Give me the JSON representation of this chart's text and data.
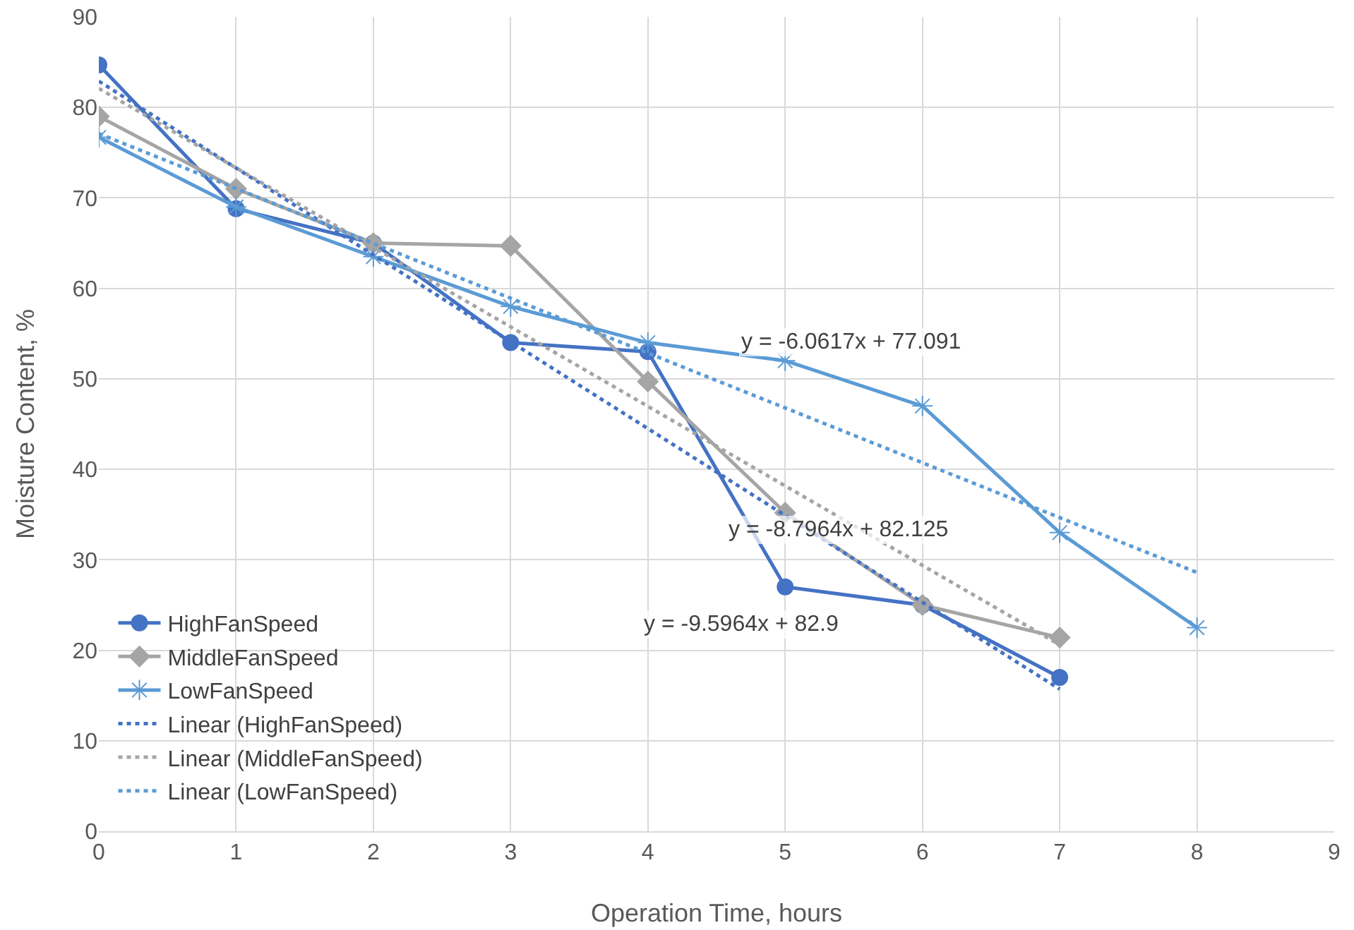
{
  "chart_data": {
    "type": "line",
    "xlabel": "Operation Time, hours",
    "ylabel": "Moisture Content, %",
    "xlim": [
      0,
      9
    ],
    "xticks": [
      0,
      1,
      2,
      3,
      4,
      5,
      6,
      7,
      8,
      9
    ],
    "ylim": [
      0,
      90
    ],
    "yticks": [
      0,
      10,
      20,
      30,
      40,
      50,
      60,
      70,
      80,
      90
    ],
    "grid": true,
    "legend": "bottom left",
    "line_style": "solid",
    "series": [
      {
        "name": "HighFanSpeed",
        "color": "#4472c4",
        "marker": "circle",
        "x": [
          0,
          1,
          2,
          3,
          4,
          5,
          6,
          7
        ],
        "values": [
          84.7,
          68.8,
          65,
          54,
          53,
          27,
          25,
          17
        ]
      },
      {
        "name": "MiddleFanSpeed",
        "color": "#a5a5a5",
        "marker": "diamond",
        "x": [
          0,
          1,
          2,
          3,
          4,
          5,
          6,
          7
        ],
        "values": [
          79,
          71,
          65,
          64.7,
          49.7,
          35.2,
          25,
          21.4
        ]
      },
      {
        "name": "LowFanSpeed",
        "color": "#5b9bd5",
        "marker": "cross",
        "x": [
          0,
          1,
          2,
          3,
          4,
          5,
          6,
          7,
          8
        ],
        "values": [
          76.7,
          69,
          63.5,
          58,
          54,
          52,
          47,
          33,
          22.5
        ]
      },
      {
        "name": "Linear (HighFanSpeed)",
        "color": "#4472c4",
        "marker": "none",
        "line_style": "dotted",
        "x": [
          0,
          7
        ],
        "values": [
          82.9,
          15.7
        ]
      },
      {
        "name": "Linear (MiddleFanSpeed)",
        "color": "#a5a5a5",
        "marker": "none",
        "line_style": "dotted",
        "x": [
          0,
          7
        ],
        "values": [
          82.1,
          20.6
        ]
      },
      {
        "name": "Linear (LowFanSpeed)",
        "color": "#5b9bd5",
        "marker": "none",
        "line_style": "dotted",
        "x": [
          0,
          8
        ],
        "values": [
          77.1,
          28.6
        ]
      }
    ],
    "annotations": [
      "y = -6.0617x + 77.091",
      "y = -8.7964x + 82.125",
      "y = -9.5964x + 82.9"
    ]
  }
}
